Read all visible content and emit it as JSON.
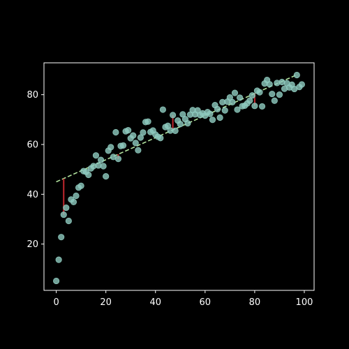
{
  "chart_data": {
    "type": "scatter",
    "title": "",
    "xlabel": "",
    "ylabel": "",
    "xlim": [
      -4.95,
      103.95
    ],
    "ylim": [
      1.4,
      92.8
    ],
    "grid": false,
    "xticks": [
      0,
      20,
      40,
      60,
      80,
      100
    ],
    "yticks": [
      20,
      40,
      60,
      80
    ],
    "x_tick_labels": [
      "0",
      "20",
      "40",
      "60",
      "80",
      "100"
    ],
    "y_tick_labels": [
      "20",
      "40",
      "60",
      "80"
    ],
    "colors": {
      "background": "#000000",
      "axes": "#ffffff",
      "points": "#8fcbbf",
      "trend": "#b3e5a0",
      "residuals": "#c0272d"
    },
    "series": [
      {
        "kind": "points",
        "points": [
          [
            0,
            5.2
          ],
          [
            1,
            13.7
          ],
          [
            2,
            22.8
          ],
          [
            3,
            31.8
          ],
          [
            4,
            34.6
          ],
          [
            5,
            29.3
          ],
          [
            6,
            37.9
          ],
          [
            7,
            36.9
          ],
          [
            8,
            39.4
          ],
          [
            9,
            42.7
          ],
          [
            10,
            43.4
          ],
          [
            11,
            49.3
          ],
          [
            12,
            49.0
          ],
          [
            13,
            47.8
          ],
          [
            14,
            50.4
          ],
          [
            15,
            51.3
          ],
          [
            16,
            55.6
          ],
          [
            17,
            51.6
          ],
          [
            18,
            53.8
          ],
          [
            19,
            51.3
          ],
          [
            20,
            47.2
          ],
          [
            21,
            57.5
          ],
          [
            22,
            58.9
          ],
          [
            23,
            55.0
          ],
          [
            24,
            64.9
          ],
          [
            25,
            54.2
          ],
          [
            26,
            59.4
          ],
          [
            27,
            59.6
          ],
          [
            28,
            65.3
          ],
          [
            29,
            65.7
          ],
          [
            30,
            62.5
          ],
          [
            31,
            63.6
          ],
          [
            32,
            60.6
          ],
          [
            33,
            57.7
          ],
          [
            34,
            62.8
          ],
          [
            35,
            64.8
          ],
          [
            36,
            69.0
          ],
          [
            37,
            69.2
          ],
          [
            38,
            65.0
          ],
          [
            39,
            65.6
          ],
          [
            40,
            64.0
          ],
          [
            41,
            63.1
          ],
          [
            42,
            62.6
          ],
          [
            43,
            74.0
          ],
          [
            44,
            67.0
          ],
          [
            45,
            67.5
          ],
          [
            46,
            65.6
          ],
          [
            47,
            71.8
          ],
          [
            48,
            65.5
          ],
          [
            49,
            69.6
          ],
          [
            50,
            68.2
          ],
          [
            51,
            72.1
          ],
          [
            52,
            70.2
          ],
          [
            53,
            68.5
          ],
          [
            54,
            72.0
          ],
          [
            55,
            73.8
          ],
          [
            56,
            72.1
          ],
          [
            57,
            73.7
          ],
          [
            58,
            71.8
          ],
          [
            59,
            72.5
          ],
          [
            60,
            71.6
          ],
          [
            61,
            73.0
          ],
          [
            62,
            72.3
          ],
          [
            63,
            69.9
          ],
          [
            64,
            75.8
          ],
          [
            65,
            74.2
          ],
          [
            66,
            70.8
          ],
          [
            67,
            77.0
          ],
          [
            68,
            73.7
          ],
          [
            69,
            77.2
          ],
          [
            70,
            78.9
          ],
          [
            71,
            77.0
          ],
          [
            72,
            80.7
          ],
          [
            73,
            74.0
          ],
          [
            74,
            78.8
          ],
          [
            75,
            75.4
          ],
          [
            76,
            75.6
          ],
          [
            77,
            76.5
          ],
          [
            78,
            77.6
          ],
          [
            79,
            79.7
          ],
          [
            80,
            75.5
          ],
          [
            81,
            81.6
          ],
          [
            82,
            81.0
          ],
          [
            83,
            75.3
          ],
          [
            84,
            84.5
          ],
          [
            85,
            85.9
          ],
          [
            86,
            84.2
          ],
          [
            87,
            80.3
          ],
          [
            88,
            77.6
          ],
          [
            89,
            84.7
          ],
          [
            90,
            80.0
          ],
          [
            91,
            85.1
          ],
          [
            92,
            82.4
          ],
          [
            93,
            84.6
          ],
          [
            94,
            82.9
          ],
          [
            95,
            84.0
          ],
          [
            96,
            82.3
          ],
          [
            97,
            87.9
          ],
          [
            98,
            83.1
          ],
          [
            99,
            84.1
          ]
        ]
      },
      {
        "kind": "trend-line",
        "style": "dashed",
        "x": [
          0,
          97
        ],
        "y": [
          45.0,
          88.0
        ]
      },
      {
        "kind": "residual-segments",
        "segments": [
          {
            "x": 3,
            "y_from": 31.8,
            "y_to": 46.3
          },
          {
            "x": 25,
            "y_from": 54.2,
            "y_to": 56.1
          },
          {
            "x": 47,
            "y_from": 71.8,
            "y_to": 65.8
          },
          {
            "x": 80,
            "y_from": 75.5,
            "y_to": 80.5
          }
        ]
      }
    ]
  }
}
